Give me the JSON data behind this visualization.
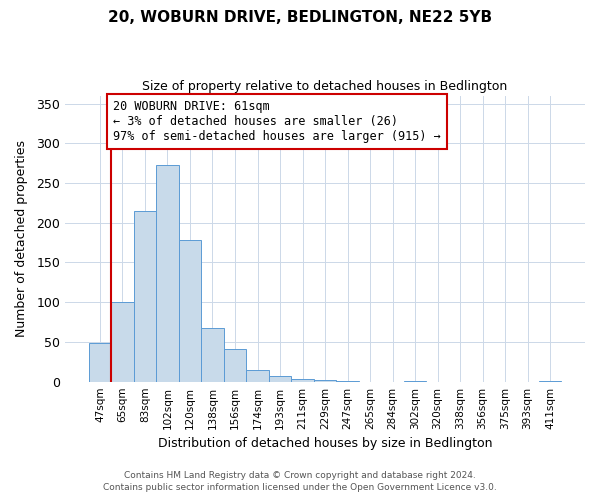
{
  "title": "20, WOBURN DRIVE, BEDLINGTON, NE22 5YB",
  "subtitle": "Size of property relative to detached houses in Bedlington",
  "xlabel": "Distribution of detached houses by size in Bedlington",
  "ylabel": "Number of detached properties",
  "bar_color": "#c8daea",
  "bar_edge_color": "#5b9bd5",
  "highlight_color": "#cc0000",
  "categories": [
    "47sqm",
    "65sqm",
    "83sqm",
    "102sqm",
    "120sqm",
    "138sqm",
    "156sqm",
    "174sqm",
    "193sqm",
    "211sqm",
    "229sqm",
    "247sqm",
    "265sqm",
    "284sqm",
    "302sqm",
    "320sqm",
    "338sqm",
    "356sqm",
    "375sqm",
    "393sqm",
    "411sqm"
  ],
  "values": [
    49,
    100,
    215,
    272,
    178,
    68,
    41,
    15,
    7,
    4,
    2,
    1,
    0,
    0,
    1,
    0,
    0,
    0,
    0,
    0,
    1
  ],
  "highlight_bar_index": 1,
  "annotation_line1": "20 WOBURN DRIVE: 61sqm",
  "annotation_line2": "← 3% of detached houses are smaller (26)",
  "annotation_line3": "97% of semi-detached houses are larger (915) →",
  "ylim": [
    0,
    360
  ],
  "yticks": [
    0,
    50,
    100,
    150,
    200,
    250,
    300,
    350
  ],
  "footer_line1": "Contains HM Land Registry data © Crown copyright and database right 2024.",
  "footer_line2": "Contains public sector information licensed under the Open Government Licence v3.0.",
  "background_color": "#ffffff",
  "grid_color": "#ccd8e8"
}
